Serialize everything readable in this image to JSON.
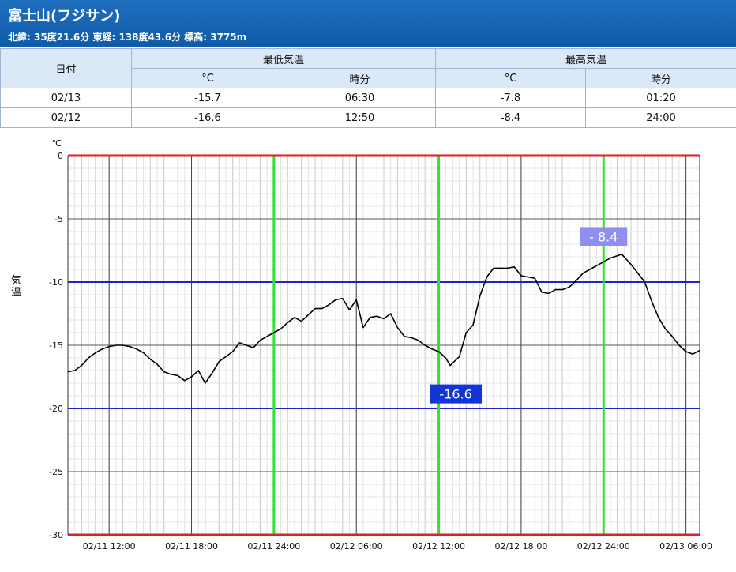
{
  "header": {
    "title": "富士山(フジサン)",
    "subtitle": "北緯: 35度21.6分 東経: 138度43.6分 標高: 3775m"
  },
  "table": {
    "date_header": "日付",
    "min_header": "最低気温",
    "max_header": "最高気温",
    "unit_c": "°C",
    "time_label": "時分",
    "rows": [
      {
        "date": "02/13",
        "min": "-15.7",
        "min_time": "06:30",
        "max": "-7.8",
        "max_time": "01:20"
      },
      {
        "date": "02/12",
        "min": "-16.6",
        "min_time": "12:50",
        "max": "-8.4",
        "max_time": "24:00"
      }
    ]
  },
  "chart_data": {
    "type": "line",
    "ylabel": "気温",
    "yunit": "℃",
    "ylim": [
      -30,
      0
    ],
    "yticks": [
      "0",
      "-5",
      "-10",
      "-15",
      "-20",
      "-25",
      "-30"
    ],
    "xticks": [
      "02/11 12:00",
      "02/11 18:00",
      "02/11 24:00",
      "02/12 06:00",
      "02/12 12:00",
      "02/12 18:00",
      "02/12 24:00",
      "02/13 06:00"
    ],
    "xlim": [
      "02/11 09:00",
      "02/13 07:00"
    ],
    "grid": true,
    "reference_lines": {
      "blue": [
        -10,
        -20
      ],
      "red": [
        0,
        -30
      ],
      "green_x": [
        "02/11 24:00",
        "02/12 12:00",
        "02/12 24:00"
      ]
    },
    "annotations": [
      {
        "text": "-16.6",
        "x": "02/12 12:50",
        "y": -16.6,
        "color": "#1235d8"
      },
      {
        "text": "- 8.4",
        "x": "02/12 24:00",
        "y": -8.4,
        "color": "#8f8ff0"
      }
    ],
    "series": [
      {
        "points": [
          [
            "02/11 09:00",
            -17.1
          ],
          [
            "02/11 09:30",
            -17.0
          ],
          [
            "02/11 10:00",
            -16.6
          ],
          [
            "02/11 10:30",
            -16.0
          ],
          [
            "02/11 11:00",
            -15.6
          ],
          [
            "02/11 11:30",
            -15.3
          ],
          [
            "02/11 12:00",
            -15.1
          ],
          [
            "02/11 12:30",
            -15.0
          ],
          [
            "02/11 13:00",
            -15.0
          ],
          [
            "02/11 13:30",
            -15.1
          ],
          [
            "02/11 14:00",
            -15.3
          ],
          [
            "02/11 14:30",
            -15.6
          ],
          [
            "02/11 15:00",
            -16.1
          ],
          [
            "02/11 15:30",
            -16.5
          ],
          [
            "02/11 16:00",
            -17.1
          ],
          [
            "02/11 16:30",
            -17.3
          ],
          [
            "02/11 17:00",
            -17.4
          ],
          [
            "02/11 17:30",
            -17.8
          ],
          [
            "02/11 18:00",
            -17.5
          ],
          [
            "02/11 18:30",
            -17.0
          ],
          [
            "02/11 19:00",
            -18.0
          ],
          [
            "02/11 19:30",
            -17.2
          ],
          [
            "02/11 20:00",
            -16.3
          ],
          [
            "02/11 20:30",
            -15.9
          ],
          [
            "02/11 21:00",
            -15.5
          ],
          [
            "02/11 21:30",
            -14.8
          ],
          [
            "02/11 22:00",
            -15.0
          ],
          [
            "02/11 22:30",
            -15.2
          ],
          [
            "02/11 23:00",
            -14.6
          ],
          [
            "02/11 23:30",
            -14.3
          ],
          [
            "02/11 24:00",
            -14.0
          ],
          [
            "02/12 00:30",
            -13.7
          ],
          [
            "02/12 01:00",
            -13.2
          ],
          [
            "02/12 01:30",
            -12.8
          ],
          [
            "02/12 02:00",
            -13.1
          ],
          [
            "02/12 02:30",
            -12.6
          ],
          [
            "02/12 03:00",
            -12.1
          ],
          [
            "02/12 03:30",
            -12.1
          ],
          [
            "02/12 04:00",
            -11.8
          ],
          [
            "02/12 04:30",
            -11.4
          ],
          [
            "02/12 05:00",
            -11.3
          ],
          [
            "02/12 05:30",
            -12.2
          ],
          [
            "02/12 06:00",
            -11.4
          ],
          [
            "02/12 06:30",
            -13.6
          ],
          [
            "02/12 07:00",
            -12.8
          ],
          [
            "02/12 07:30",
            -12.7
          ],
          [
            "02/12 08:00",
            -12.9
          ],
          [
            "02/12 08:30",
            -12.5
          ],
          [
            "02/12 09:00",
            -13.6
          ],
          [
            "02/12 09:30",
            -14.3
          ],
          [
            "02/12 10:00",
            -14.4
          ],
          [
            "02/12 10:30",
            -14.6
          ],
          [
            "02/12 11:00",
            -15.0
          ],
          [
            "02/12 11:30",
            -15.3
          ],
          [
            "02/12 12:00",
            -15.5
          ],
          [
            "02/12 12:30",
            -16.0
          ],
          [
            "02/12 12:50",
            -16.6
          ],
          [
            "02/12 13:30",
            -15.9
          ],
          [
            "02/12 14:00",
            -14.0
          ],
          [
            "02/12 14:30",
            -13.4
          ],
          [
            "02/12 15:00",
            -11.1
          ],
          [
            "02/12 15:30",
            -9.6
          ],
          [
            "02/12 16:00",
            -8.9
          ],
          [
            "02/12 16:30",
            -8.9
          ],
          [
            "02/12 17:00",
            -8.9
          ],
          [
            "02/12 17:30",
            -8.8
          ],
          [
            "02/12 18:00",
            -9.5
          ],
          [
            "02/12 18:30",
            -9.6
          ],
          [
            "02/12 19:00",
            -9.7
          ],
          [
            "02/12 19:30",
            -10.8
          ],
          [
            "02/12 20:00",
            -10.9
          ],
          [
            "02/12 20:30",
            -10.6
          ],
          [
            "02/12 21:00",
            -10.6
          ],
          [
            "02/12 21:30",
            -10.4
          ],
          [
            "02/12 22:00",
            -9.9
          ],
          [
            "02/12 22:30",
            -9.3
          ],
          [
            "02/12 23:00",
            -9.0
          ],
          [
            "02/12 23:30",
            -8.7
          ],
          [
            "02/12 24:00",
            -8.4
          ],
          [
            "02/13 00:30",
            -8.1
          ],
          [
            "02/13 01:20",
            -7.8
          ],
          [
            "02/13 02:00",
            -8.6
          ],
          [
            "02/13 02:30",
            -9.3
          ],
          [
            "02/13 03:00",
            -10.0
          ],
          [
            "02/13 03:30",
            -11.5
          ],
          [
            "02/13 04:00",
            -12.8
          ],
          [
            "02/13 04:30",
            -13.7
          ],
          [
            "02/13 05:00",
            -14.3
          ],
          [
            "02/13 05:30",
            -15.0
          ],
          [
            "02/13 06:00",
            -15.5
          ],
          [
            "02/13 06:30",
            -15.7
          ],
          [
            "02/13 07:00",
            -15.4
          ]
        ]
      }
    ]
  }
}
